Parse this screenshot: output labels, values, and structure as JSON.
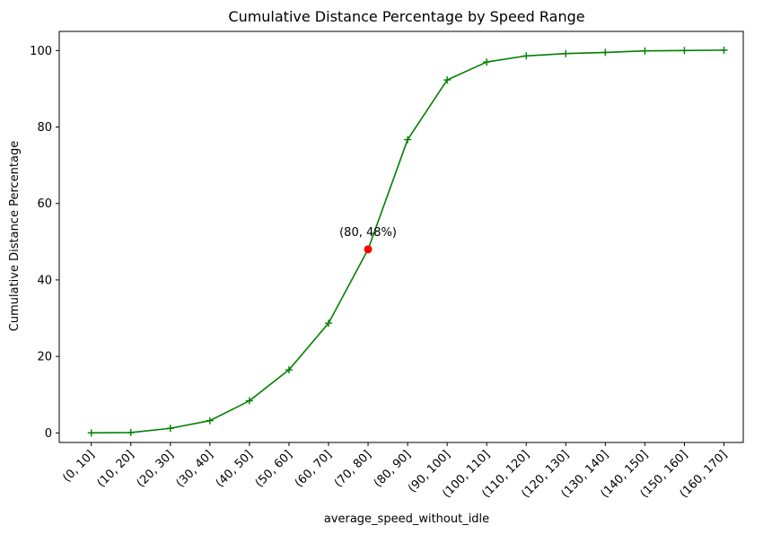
{
  "chart_data": {
    "type": "line",
    "title": "Cumulative Distance Percentage by Speed Range",
    "xlabel": "average_speed_without_idle",
    "ylabel": "Cumulative Distance Percentage",
    "categories": [
      "(0, 10]",
      "(10, 20]",
      "(20, 30]",
      "(30, 40]",
      "(40, 50]",
      "(50, 60]",
      "(60, 70]",
      "(70, 80]",
      "(80, 90]",
      "(90, 100]",
      "(100, 110]",
      "(110, 120]",
      "(120, 130]",
      "(130, 140]",
      "(140, 150]",
      "(150, 160]",
      "(160, 170]"
    ],
    "series": [
      {
        "values": [
          0.0,
          0.1,
          1.2,
          3.2,
          8.4,
          16.5,
          28.7,
          48.0,
          76.7,
          92.3,
          97.0,
          98.6,
          99.2,
          99.5,
          99.9,
          100.0,
          100.1
        ]
      }
    ],
    "ylim": [
      -2.5,
      105
    ],
    "yticks": [
      0,
      20,
      40,
      60,
      80,
      100
    ],
    "grid": false,
    "line_color": "#008000",
    "marker": "+",
    "highlight": {
      "category_index": 7,
      "value": 48.0,
      "color": "#ff0000",
      "label": "(80, 48%)"
    }
  }
}
